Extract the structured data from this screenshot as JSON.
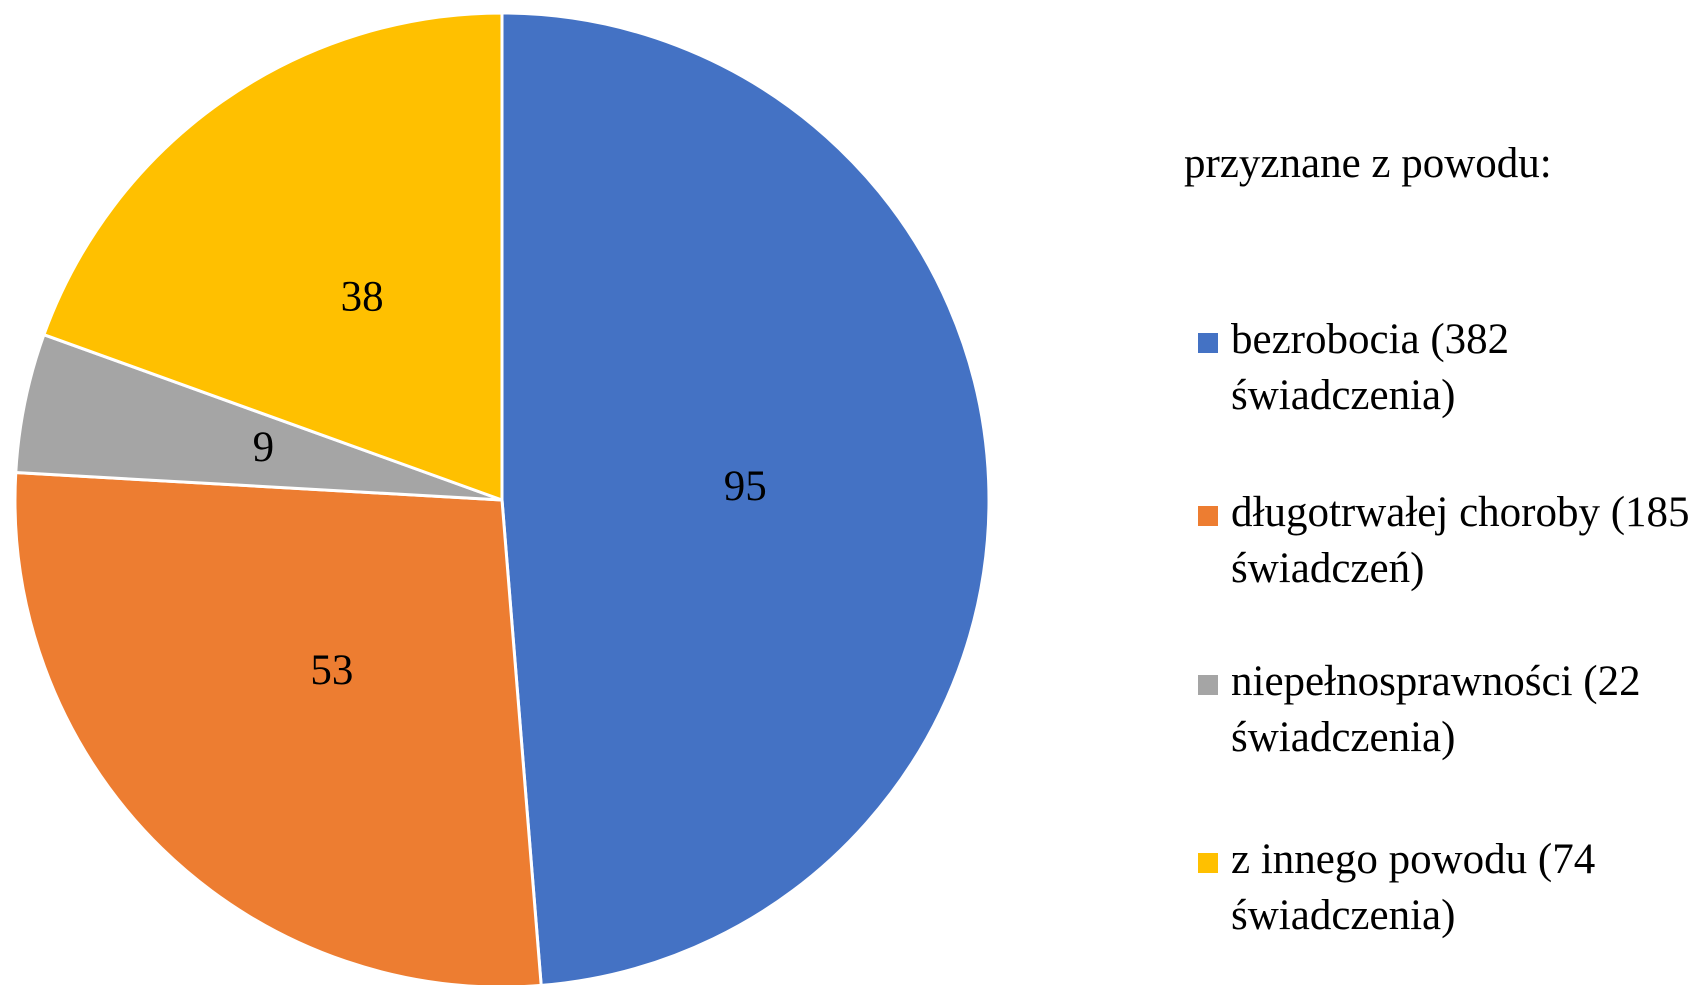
{
  "chart_data": {
    "type": "pie",
    "legend_title": "przyznane z powodu:",
    "categories": [
      "bezrobocia (382 świadczenia)",
      "długotrwałej choroby (185 świadczeń)",
      "niepełnosprawności (22 świadczenia)",
      "z innego powodu (74 świadczenia)"
    ],
    "values": [
      95,
      53,
      9,
      38
    ],
    "colors": [
      "#4472c4",
      "#ed7d31",
      "#a5a5a5",
      "#ffc000"
    ],
    "legend": "right"
  }
}
